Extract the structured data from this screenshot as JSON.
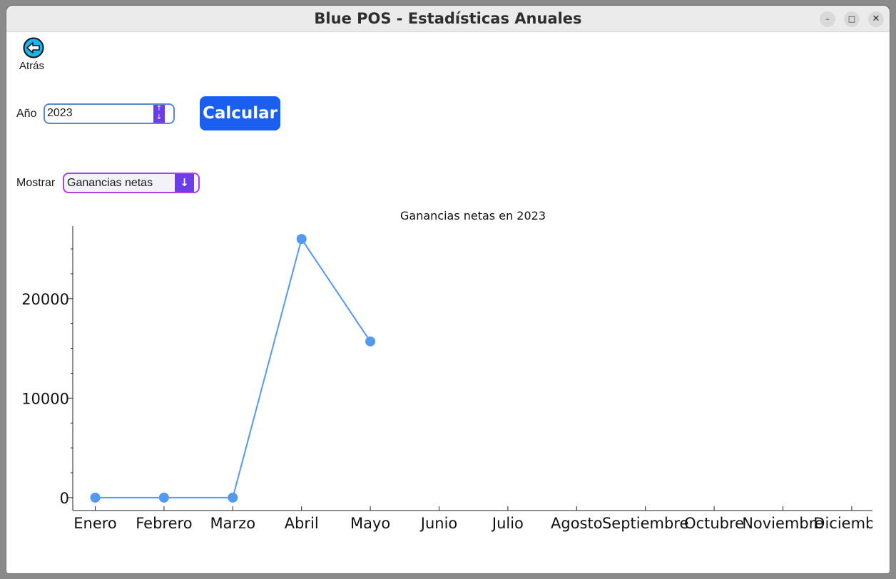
{
  "window": {
    "title": "Blue POS - Estadísticas Anuales",
    "controls": {
      "minimize": "–",
      "maximize": "□",
      "close": "✕"
    }
  },
  "back": {
    "label": "Atrás",
    "icon": "back-arrow-icon"
  },
  "year": {
    "label": "Año",
    "value": "2023"
  },
  "calculate": {
    "label": "Calcular"
  },
  "show": {
    "label": "Mostrar",
    "selected": "Ganancias netas"
  },
  "colors": {
    "accent": "#1b5ff0",
    "series": "#5599ee",
    "select_border": "#b040e0",
    "spinner": "#6a3de8"
  },
  "chart_data": {
    "type": "line",
    "title": "Ganancias netas en 2023",
    "categories": [
      "Enero",
      "Febrero",
      "Marzo",
      "Abril",
      "Mayo",
      "Junio",
      "Julio",
      "Agosto",
      "Septiembre",
      "Octubre",
      "Noviembre",
      "Diciembre"
    ],
    "series": [
      {
        "values": [
          0,
          0,
          0,
          26000,
          15700,
          null,
          null,
          null,
          null,
          null,
          null,
          null
        ]
      }
    ],
    "yticks": [
      0,
      10000,
      20000
    ],
    "ylim": [
      -1300,
      27300
    ],
    "grid": false,
    "legend": "none"
  }
}
